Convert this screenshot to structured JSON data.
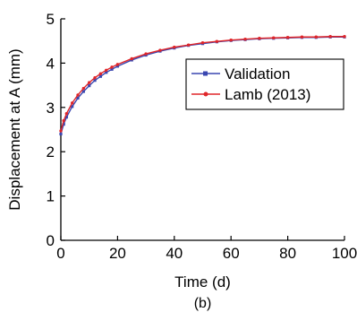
{
  "chart_data": {
    "type": "line",
    "title": "",
    "xlabel": "Time (d)",
    "ylabel": "Displacement at A (mm)",
    "panel_label": "(b)",
    "xlim": [
      0,
      100
    ],
    "ylim": [
      0,
      5
    ],
    "x_ticks": [
      0,
      20,
      40,
      60,
      80,
      100
    ],
    "x_tick_labels": [
      "0",
      "20",
      "40",
      "60",
      "80",
      "100"
    ],
    "y_ticks": [
      0,
      1,
      2,
      3,
      4,
      5
    ],
    "y_tick_labels": [
      "0",
      "1",
      "2",
      "3",
      "4",
      "5"
    ],
    "grid": false,
    "legend_position": "center-right",
    "series": [
      {
        "name": "Validation",
        "color": "#3a47b0",
        "marker": "square",
        "x": [
          0,
          1,
          2,
          4,
          6,
          8,
          10,
          12,
          14,
          16,
          18,
          20,
          25,
          30,
          35,
          40,
          45,
          50,
          55,
          60,
          65,
          70,
          75,
          80,
          85,
          90,
          95,
          100
        ],
        "y": [
          2.4,
          2.62,
          2.78,
          3.02,
          3.21,
          3.36,
          3.49,
          3.61,
          3.7,
          3.79,
          3.86,
          3.93,
          4.07,
          4.18,
          4.27,
          4.34,
          4.4,
          4.44,
          4.48,
          4.51,
          4.53,
          4.55,
          4.56,
          4.57,
          4.58,
          4.58,
          4.59,
          4.59
        ]
      },
      {
        "name": "Lamb (2013)",
        "color": "#e0262a",
        "marker": "circle",
        "x": [
          0,
          1,
          2,
          4,
          6,
          8,
          10,
          12,
          14,
          16,
          18,
          20,
          25,
          30,
          35,
          40,
          45,
          50,
          55,
          60,
          65,
          70,
          75,
          80,
          85,
          90,
          95,
          100
        ],
        "y": [
          2.47,
          2.7,
          2.86,
          3.1,
          3.28,
          3.43,
          3.56,
          3.67,
          3.76,
          3.84,
          3.91,
          3.97,
          4.1,
          4.21,
          4.29,
          4.36,
          4.41,
          4.46,
          4.49,
          4.52,
          4.54,
          4.56,
          4.57,
          4.58,
          4.59,
          4.59,
          4.6,
          4.6
        ]
      }
    ]
  }
}
